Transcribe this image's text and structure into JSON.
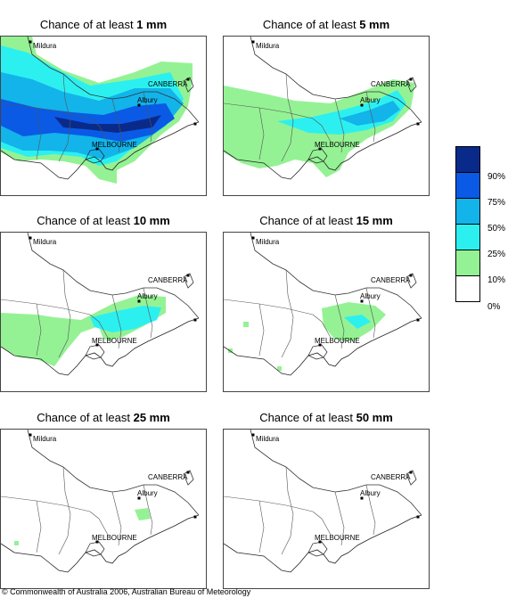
{
  "panels": [
    {
      "title_prefix": "Chance of at least ",
      "title_value": "1 mm"
    },
    {
      "title_prefix": "Chance of at least ",
      "title_value": "5 mm"
    },
    {
      "title_prefix": "Chance of at least ",
      "title_value": "10 mm"
    },
    {
      "title_prefix": "Chance of at least ",
      "title_value": "15 mm"
    },
    {
      "title_prefix": "Chance of at least ",
      "title_value": "25 mm"
    },
    {
      "title_prefix": "Chance of at least ",
      "title_value": "50 mm"
    }
  ],
  "places": {
    "mildura": "Mildura",
    "canberra": "CANBERRA",
    "albury": "Albury",
    "melbourne": "MELBOURNE"
  },
  "legend": {
    "colors": [
      "#0a2a8a",
      "#0a5ae6",
      "#12b4ea",
      "#2cf0f0",
      "#94f294",
      "#ffffff"
    ],
    "labels": [
      "90%",
      "75%",
      "50%",
      "25%",
      "10%",
      "0%"
    ]
  },
  "copyright": "© Commonwealth of Australia 2006, Australian Bureau of Meteorology"
}
